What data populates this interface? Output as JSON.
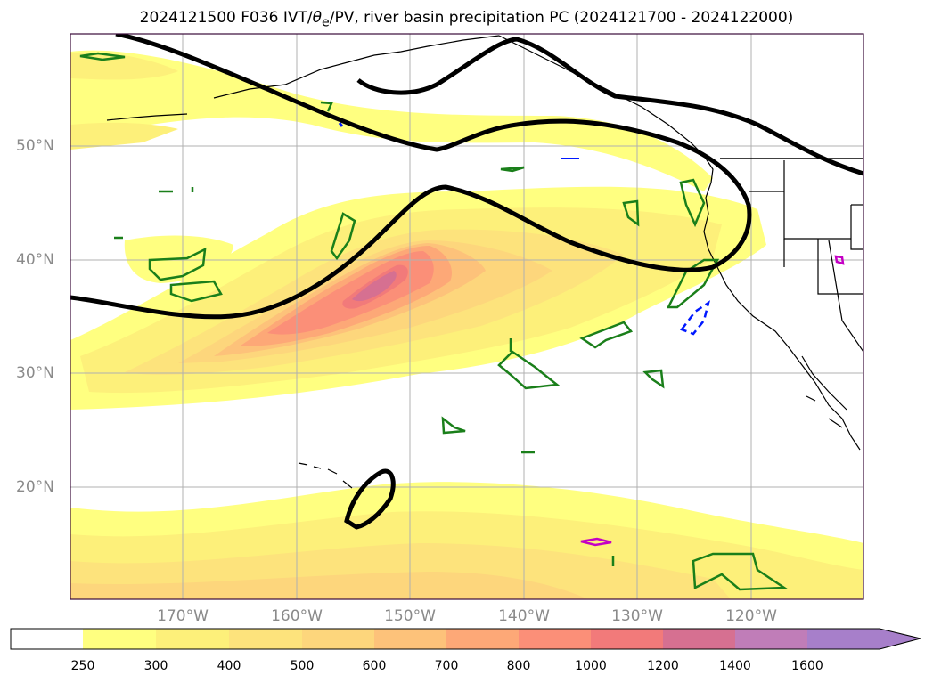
{
  "title": {
    "prefix": "2024121500 F036 IVT/",
    "theta": "θ",
    "theta_sub": "e",
    "suffix": "/PV, river basin precipitation PC (2024121700 - 2024122000)"
  },
  "latitude_labels": [
    "50°N",
    "40°N",
    "30°N",
    "20°N"
  ],
  "longitude_labels": [
    "170°W",
    "160°W",
    "150°W",
    "140°W",
    "130°W",
    "120°W"
  ],
  "colorbar": {
    "ticks": [
      "250",
      "300",
      "400",
      "500",
      "600",
      "700",
      "800",
      "1000",
      "1200",
      "1400",
      "1600"
    ],
    "colors": [
      "#ffffff",
      "#ffff80",
      "#fdf07a",
      "#fde37c",
      "#fdd67c",
      "#fdc27a",
      "#fda877",
      "#fb8f78",
      "#f27a7a",
      "#d67091",
      "#c07db8",
      "#a77fca"
    ],
    "extend": "max"
  },
  "legend_colors": {
    "pv_contour": "#000000",
    "theta_e_contour": "#1a7f1a",
    "negative_contour": "#0018ff",
    "precip_contour": "#c400c4"
  }
}
